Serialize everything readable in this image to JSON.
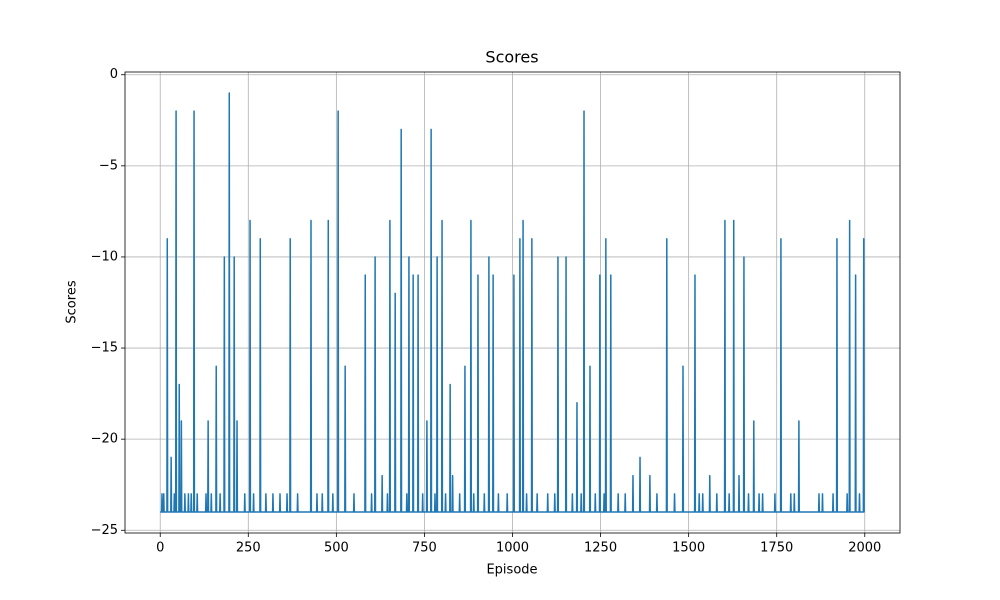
{
  "chart_data": {
    "type": "line",
    "title": "Scores",
    "x_label": "Episode",
    "y_label": "Scores",
    "xlim": [
      -100,
      2100
    ],
    "ylim": [
      -25.15,
      0.15
    ],
    "xticks": [
      0,
      250,
      500,
      750,
      1000,
      1250,
      1500,
      1750,
      2000
    ],
    "yticks": [
      {
        "value": -25,
        "label": "−25"
      },
      {
        "value": -20,
        "label": "−20"
      },
      {
        "value": -15,
        "label": "−15"
      },
      {
        "value": -10,
        "label": "−10"
      },
      {
        "value": -5,
        "label": "−5"
      },
      0
    ],
    "grid": true,
    "series": [
      {
        "color": "#1f77b4",
        "x": [
          0,
          4,
          5,
          6,
          9,
          10,
          11,
          19,
          20,
          21,
          30,
          31,
          32,
          39,
          40,
          41,
          44,
          45,
          46,
          53,
          54,
          55,
          59,
          60,
          61,
          69,
          70,
          71,
          79,
          80,
          81,
          87,
          88,
          89,
          95,
          96,
          97,
          104,
          105,
          106,
          129,
          130,
          131,
          135,
          136,
          137,
          144,
          145,
          146,
          158,
          159,
          160,
          169,
          170,
          171,
          181,
          182,
          183,
          195,
          196,
          197,
          209,
          210,
          211,
          217,
          218,
          219,
          239,
          240,
          241,
          254,
          255,
          256,
          264,
          265,
          266,
          283,
          284,
          285,
          299,
          300,
          301,
          319,
          320,
          321,
          339,
          340,
          341,
          359,
          360,
          361,
          368,
          369,
          370,
          389,
          390,
          391,
          427,
          428,
          429,
          444,
          445,
          446,
          459,
          460,
          461,
          476,
          477,
          478,
          489,
          490,
          491,
          504,
          505,
          506,
          524,
          525,
          526,
          549,
          550,
          551,
          581,
          582,
          583,
          599,
          600,
          601,
          609,
          610,
          611,
          629,
          630,
          631,
          644,
          645,
          646,
          651,
          652,
          653,
          666,
          667,
          668,
          683,
          684,
          685,
          699,
          700,
          701,
          705,
          706,
          707,
          717,
          718,
          719,
          731,
          732,
          733,
          744,
          745,
          746,
          756,
          757,
          758,
          768,
          769,
          770,
          779,
          780,
          781,
          785,
          786,
          787,
          799,
          800,
          801,
          809,
          810,
          811,
          822,
          823,
          824,
          829,
          830,
          831,
          849,
          850,
          851,
          864,
          865,
          866,
          881,
          882,
          883,
          889,
          890,
          891,
          901,
          902,
          903,
          919,
          920,
          921,
          932,
          933,
          934,
          944,
          945,
          946,
          959,
          960,
          961,
          984,
          985,
          986,
          1003,
          1004,
          1005,
          1020,
          1021,
          1022,
          1029,
          1030,
          1031,
          1039,
          1040,
          1041,
          1054,
          1055,
          1056,
          1069,
          1070,
          1071,
          1099,
          1100,
          1101,
          1119,
          1120,
          1121,
          1128,
          1129,
          1130,
          1151,
          1152,
          1153,
          1169,
          1170,
          1171,
          1182,
          1183,
          1184,
          1194,
          1195,
          1196,
          1202,
          1203,
          1204,
          1219,
          1220,
          1221,
          1234,
          1235,
          1236,
          1247,
          1248,
          1249,
          1259,
          1260,
          1261,
          1264,
          1265,
          1266,
          1278,
          1279,
          1280,
          1299,
          1300,
          1301,
          1319,
          1320,
          1321,
          1341,
          1342,
          1343,
          1361,
          1362,
          1363,
          1389,
          1390,
          1391,
          1409,
          1410,
          1411,
          1437,
          1438,
          1439,
          1459,
          1460,
          1461,
          1483,
          1484,
          1485,
          1517,
          1518,
          1519,
          1529,
          1530,
          1531,
          1539,
          1540,
          1541,
          1559,
          1560,
          1561,
          1579,
          1580,
          1581,
          1602,
          1603,
          1604,
          1614,
          1615,
          1616,
          1627,
          1628,
          1629,
          1642,
          1643,
          1644,
          1656,
          1657,
          1658,
          1669,
          1670,
          1671,
          1684,
          1685,
          1686,
          1699,
          1700,
          1701,
          1709,
          1710,
          1711,
          1744,
          1745,
          1746,
          1761,
          1762,
          1763,
          1789,
          1790,
          1791,
          1799,
          1800,
          1801,
          1812,
          1813,
          1814,
          1869,
          1870,
          1871,
          1879,
          1880,
          1881,
          1909,
          1910,
          1911,
          1920,
          1921,
          1922,
          1949,
          1950,
          1951,
          1956,
          1957,
          1958,
          1973,
          1974,
          1975,
          1984,
          1985,
          1986,
          1996,
          1997,
          1998,
          1999
        ],
        "values": [
          -24,
          -24,
          -23,
          -24,
          -24,
          -23,
          -24,
          -24,
          -9,
          -24,
          -24,
          -21,
          -24,
          -24,
          -23,
          -24,
          -24,
          -2,
          -24,
          -24,
          -17,
          -24,
          -24,
          -19,
          -24,
          -24,
          -23,
          -24,
          -24,
          -23,
          -24,
          -24,
          -23,
          -24,
          -24,
          -2,
          -24,
          -24,
          -23,
          -24,
          -24,
          -23,
          -24,
          -24,
          -19,
          -24,
          -24,
          -23,
          -24,
          -24,
          -16,
          -24,
          -24,
          -23,
          -24,
          -24,
          -10,
          -24,
          -24,
          -1,
          -24,
          -24,
          -10,
          -24,
          -24,
          -19,
          -24,
          -24,
          -23,
          -24,
          -24,
          -8,
          -24,
          -24,
          -23,
          -24,
          -24,
          -9,
          -24,
          -24,
          -23,
          -24,
          -24,
          -23,
          -24,
          -24,
          -23,
          -24,
          -24,
          -23,
          -24,
          -24,
          -9,
          -24,
          -24,
          -23,
          -24,
          -24,
          -8,
          -24,
          -24,
          -23,
          -24,
          -24,
          -23,
          -24,
          -24,
          -8,
          -24,
          -24,
          -23,
          -24,
          -24,
          -2,
          -24,
          -24,
          -16,
          -24,
          -24,
          -23,
          -24,
          -24,
          -11,
          -24,
          -24,
          -23,
          -24,
          -24,
          -10,
          -24,
          -24,
          -22,
          -24,
          -24,
          -23,
          -24,
          -24,
          -8,
          -24,
          -24,
          -12,
          -24,
          -24,
          -3,
          -24,
          -24,
          -23,
          -24,
          -24,
          -10,
          -24,
          -24,
          -11,
          -24,
          -24,
          -11,
          -24,
          -24,
          -23,
          -24,
          -24,
          -19,
          -24,
          -24,
          -3,
          -24,
          -24,
          -23,
          -24,
          -24,
          -10,
          -24,
          -24,
          -8,
          -24,
          -24,
          -23,
          -24,
          -24,
          -17,
          -24,
          -24,
          -22,
          -24,
          -24,
          -23,
          -24,
          -24,
          -16,
          -24,
          -24,
          -8,
          -24,
          -24,
          -23,
          -24,
          -24,
          -11,
          -24,
          -24,
          -23,
          -24,
          -24,
          -10,
          -24,
          -24,
          -11,
          -24,
          -24,
          -23,
          -24,
          -24,
          -23,
          -24,
          -24,
          -11,
          -24,
          -24,
          -9,
          -24,
          -24,
          -8,
          -24,
          -24,
          -23,
          -24,
          -24,
          -9,
          -24,
          -24,
          -23,
          -24,
          -24,
          -23,
          -24,
          -24,
          -23,
          -24,
          -24,
          -10,
          -24,
          -24,
          -10,
          -24,
          -24,
          -23,
          -24,
          -24,
          -18,
          -24,
          -24,
          -23,
          -24,
          -24,
          -2,
          -24,
          -24,
          -16,
          -24,
          -24,
          -23,
          -24,
          -24,
          -11,
          -24,
          -24,
          -23,
          -24,
          -24,
          -9,
          -24,
          -24,
          -11,
          -24,
          -24,
          -23,
          -24,
          -24,
          -23,
          -24,
          -24,
          -22,
          -24,
          -24,
          -21,
          -24,
          -24,
          -22,
          -24,
          -24,
          -23,
          -24,
          -24,
          -9,
          -24,
          -24,
          -23,
          -24,
          -24,
          -16,
          -24,
          -24,
          -11,
          -24,
          -24,
          -23,
          -24,
          -24,
          -23,
          -24,
          -24,
          -22,
          -24,
          -24,
          -23,
          -24,
          -24,
          -8,
          -24,
          -24,
          -23,
          -24,
          -24,
          -8,
          -24,
          -24,
          -22,
          -24,
          -24,
          -10,
          -24,
          -24,
          -23,
          -24,
          -24,
          -19,
          -24,
          -24,
          -23,
          -24,
          -24,
          -23,
          -24,
          -24,
          -23,
          -24,
          -24,
          -9,
          -24,
          -24,
          -23,
          -24,
          -24,
          -23,
          -24,
          -24,
          -19,
          -24,
          -24,
          -23,
          -24,
          -24,
          -23,
          -24,
          -24,
          -23,
          -24,
          -24,
          -9,
          -24,
          -24,
          -23,
          -24,
          -24,
          -8,
          -24,
          -24,
          -11,
          -24,
          -24,
          -23,
          -24,
          -24,
          -9,
          -24,
          -24
        ]
      }
    ]
  }
}
